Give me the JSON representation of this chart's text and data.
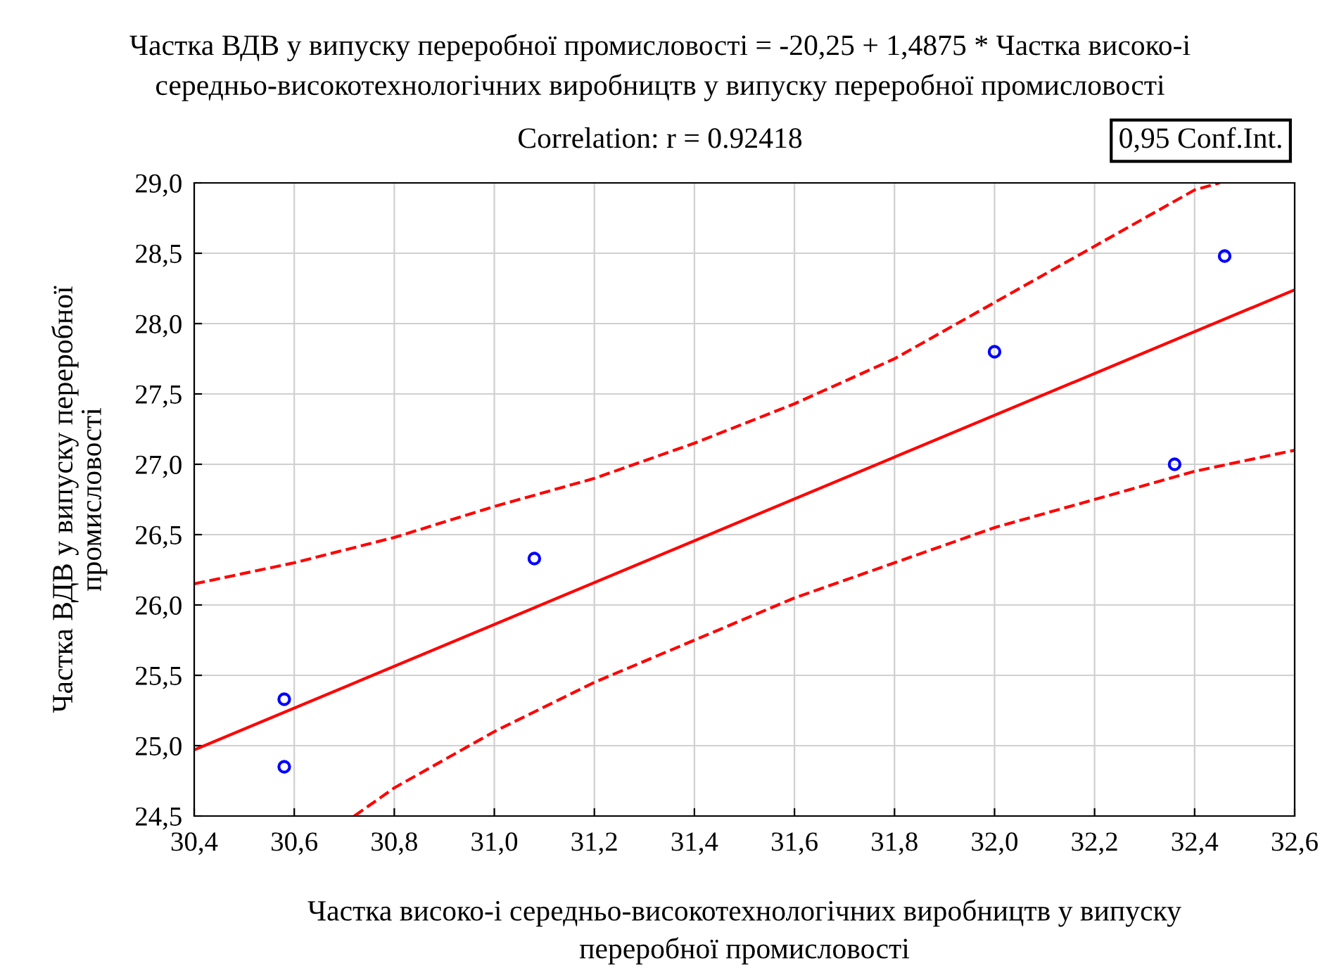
{
  "chart_data": {
    "type": "scatter",
    "title": "Частка ВДВ у випуску переробної промисловості = -20,25 + 1,4875 * Частка високо-і\nсередньо-високотехнологічних виробництв у випуску переробної промисловості",
    "subtitle": "Correlation: r = 0.92418",
    "xlabel": "Частка високо-і середньо-високотехнологічних виробництв у випуску\nпереробної промисловості",
    "ylabel": "Частка ВДВ у випуску переробної\nпромисловості",
    "annotations": [
      "0,95 Conf.Int."
    ],
    "series": [
      {
        "color": "#0000ff",
        "marker": "circle",
        "x": [
          30.58,
          30.58,
          31.08,
          32.0,
          32.36,
          32.46
        ],
        "values": [
          25.33,
          24.85,
          26.33,
          27.8,
          27.0,
          28.48
        ]
      },
      {
        "type": "line",
        "color": "#ff0000",
        "marker": "none",
        "line_style": "solid",
        "x": [
          30.4,
          32.6
        ],
        "values": [
          24.97,
          28.24
        ]
      },
      {
        "type": "line",
        "color": "#ff0000",
        "marker": "none",
        "line_style": "dashed",
        "x": [
          30.4,
          30.6,
          30.8,
          31.0,
          31.2,
          31.4,
          31.6,
          31.8,
          32.0,
          32.2,
          32.4,
          32.45
        ],
        "values": [
          26.15,
          26.3,
          26.48,
          26.7,
          26.9,
          27.15,
          27.43,
          27.75,
          28.15,
          28.55,
          28.95,
          29.0
        ]
      },
      {
        "type": "line",
        "color": "#ff0000",
        "marker": "none",
        "line_style": "dashed",
        "x": [
          30.72,
          30.8,
          31.0,
          31.2,
          31.4,
          31.6,
          31.8,
          32.0,
          32.2,
          32.4,
          32.6
        ],
        "values": [
          24.5,
          24.7,
          25.1,
          25.45,
          25.75,
          26.05,
          26.3,
          26.55,
          26.75,
          26.95,
          27.1
        ]
      }
    ],
    "xlim": [
      30.4,
      32.6
    ],
    "xticks": [
      {
        "value": 30.4,
        "label": "30,4"
      },
      {
        "value": 30.6,
        "label": "30,6"
      },
      {
        "value": 30.8,
        "label": "30,8"
      },
      {
        "value": 31.0,
        "label": "31,0"
      },
      {
        "value": 31.2,
        "label": "31,2"
      },
      {
        "value": 31.4,
        "label": "31,4"
      },
      {
        "value": 31.6,
        "label": "31,6"
      },
      {
        "value": 31.8,
        "label": "31,8"
      },
      {
        "value": 32.0,
        "label": "32,0"
      },
      {
        "value": 32.2,
        "label": "32,2"
      },
      {
        "value": 32.4,
        "label": "32,4"
      },
      {
        "value": 32.6,
        "label": "32,6"
      }
    ],
    "ylim": [
      24.5,
      29.0
    ],
    "yticks": [
      {
        "value": 24.5,
        "label": "24,5"
      },
      {
        "value": 25.0,
        "label": "25,0"
      },
      {
        "value": 25.5,
        "label": "25,5"
      },
      {
        "value": 26.0,
        "label": "26,0"
      },
      {
        "value": 26.5,
        "label": "26,5"
      },
      {
        "value": 27.0,
        "label": "27,0"
      },
      {
        "value": 27.5,
        "label": "27,5"
      },
      {
        "value": 28.0,
        "label": "28,0"
      },
      {
        "value": 28.5,
        "label": "28,5"
      },
      {
        "value": 29.0,
        "label": "29,0"
      }
    ],
    "grid": true
  }
}
